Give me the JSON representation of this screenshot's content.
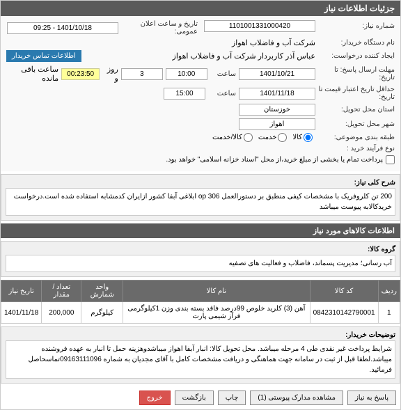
{
  "panel_title": "جزئیات اطلاعات نیاز",
  "form": {
    "niaz_no_label": "شماره نیاز:",
    "niaz_no": "1101001331000420",
    "announce_date_label": "تاریخ و ساعت اعلان عمومی:",
    "announce_date": "1401/10/18 - 09:25",
    "buyer_org_label": "نام دستگاه خریدار:",
    "buyer_org": "شرکت آب و فاضلاب اهواز",
    "requester_label": "ایجاد کننده درخواست:",
    "requester": "عباس آذر کاربردار شرکت آب و فاضلاب اهواز",
    "contact_btn": "اطلاعات تماس خریدار",
    "deadline_label": "مهلت ارسال پاسخ: تا تاریخ:",
    "deadline_date": "1401/10/21",
    "deadline_time": "10:00",
    "days_label": "روز و",
    "days": "3",
    "timer": "00:23:50",
    "timer_suffix": "ساعت باقی مانده",
    "validity_label": "حداقل تاریخ اعتبار قیمت تا تاریخ:",
    "validity_date": "1401/11/18",
    "validity_time": "15:00",
    "time_label": "ساعت",
    "province_label": "استان محل تحویل:",
    "province": "خوزستان",
    "city_label": "شهر محل تحویل:",
    "city": "اهواز",
    "category_label": "طبقه بندی موضوعی:",
    "cat_goods": "کالا",
    "cat_service": "خدمت",
    "cat_both": "کالا/خدمت",
    "process_label": "نوع فرآیند خرید :",
    "payment_text": "پرداخت تمام یا بخشی از مبلغ خرید،از محل \"اسناد خزانه اسلامی\" خواهد بود."
  },
  "desc": {
    "label": "شرح کلی نیاز:",
    "text": "200 تن کلروفریک با مشخصات کیفی منطبق بر دستورالعمل  op 306 ابلاغی آبفا کشور ازایران کدمشابه استفاده شده است.درخواست خریدکالابه پیوست میباشد"
  },
  "items_header": "اطلاعات کالاهای مورد نیاز",
  "group": {
    "label": "گروه کالا:",
    "text": "آب رسانی؛ مدیریت پسماند، فاضلاب و فعالیت های تصفیه"
  },
  "table": {
    "cols": [
      "ردیف",
      "کد کالا",
      "نام کالا",
      "واحد شمارش",
      "تعداد / مقدار",
      "تاریخ نیاز"
    ],
    "rows": [
      [
        "1",
        "0842310142790001",
        "آهن (3) کلرید خلوص 99درصد فاقد بسته بندی وزن 1کیلوگرمی فرآز شیمی پارت",
        "کیلوگرم",
        "200,000",
        "1401/11/18"
      ]
    ]
  },
  "notes": {
    "label": "توضیحات خریدار:",
    "text": "شرایط پرداخت غیر نقدی طی 4 مرحله میباشد. محل تحویل کالا: انبار آبفا اهواز میباشدوهزینه حمل تا انبار به عهده فروشنده میباشد.لطفا قبل از ثبت در سامانه جهت هماهنگی و دریافت مشخصات کامل با آقای مجدیان به شماره 09163111096تماسحاصل فرمائید."
  },
  "buttons": {
    "reply": "پاسخ به نیاز",
    "attachments": "مشاهده مدارک پیوستی (1)",
    "print": "چاپ",
    "back": "بازگشت",
    "reject": "خروج"
  },
  "colors": {
    "header_bg": "#5a5a5a",
    "timer_bg": "#ffff99",
    "contact_bg": "#2a7aaf"
  }
}
